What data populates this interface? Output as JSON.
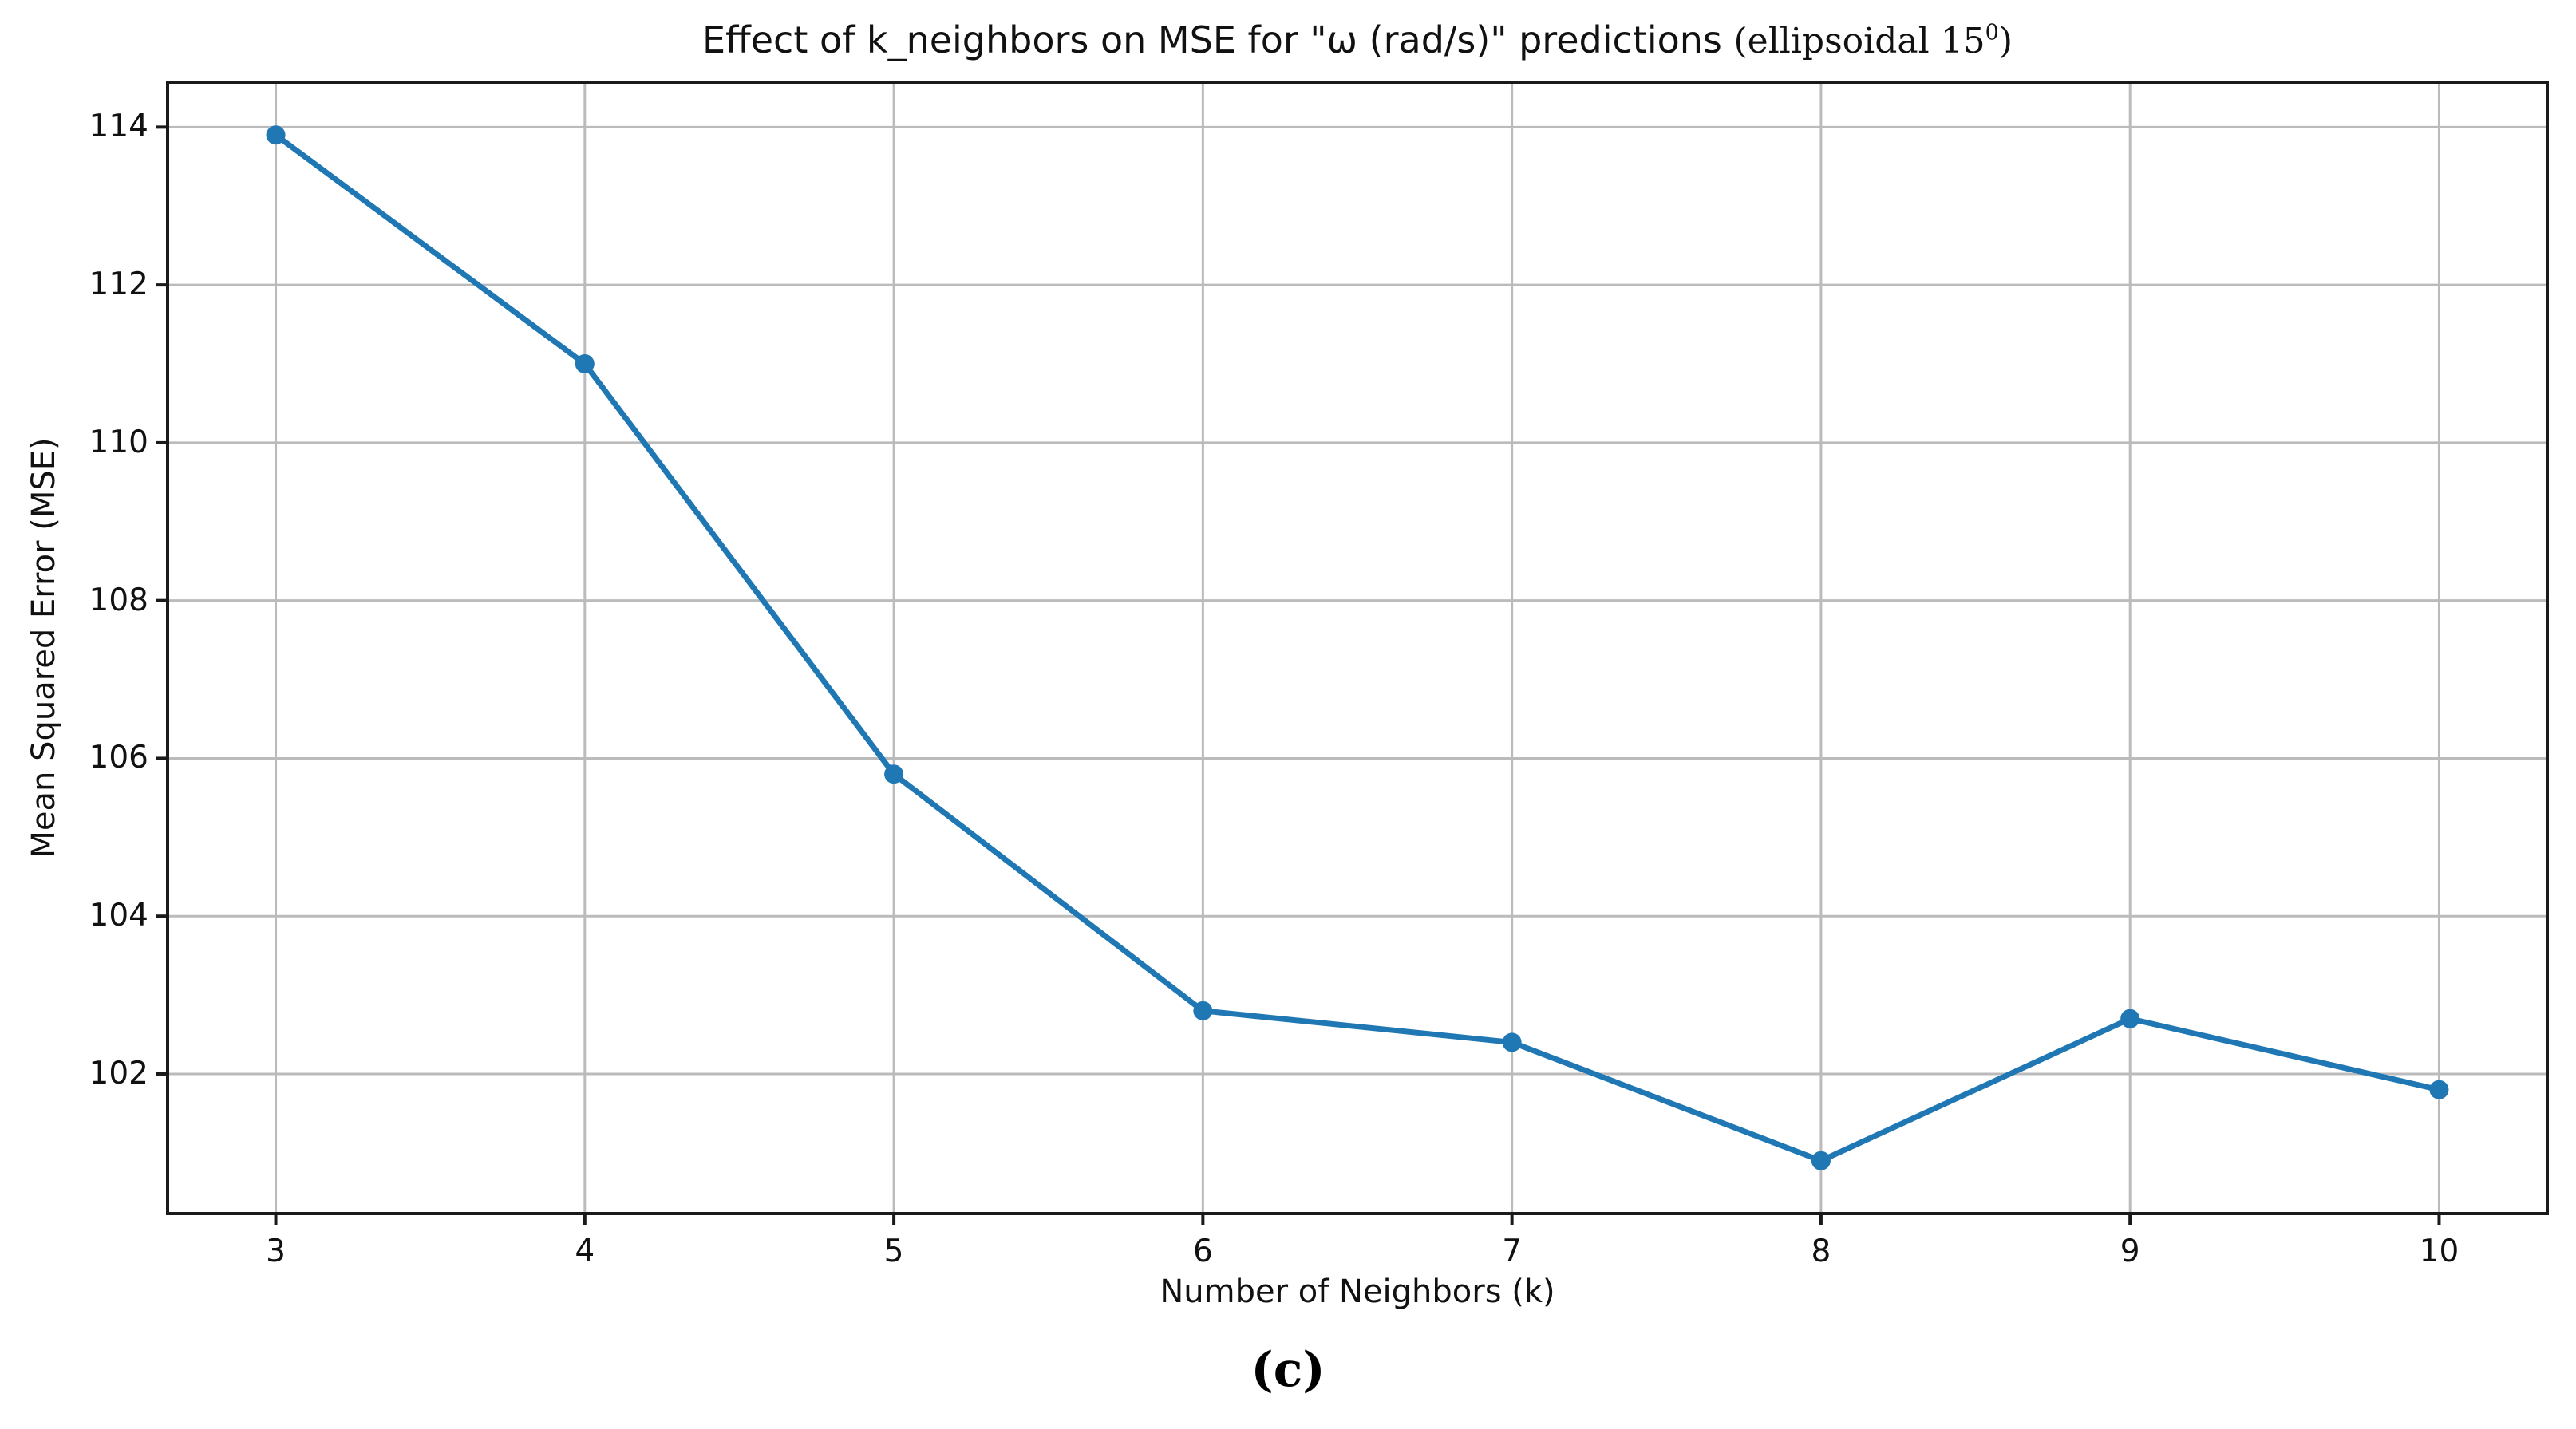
{
  "figure": {
    "caption": "(c)"
  },
  "chart_data": {
    "type": "line",
    "title": "Effect of k_neighbors on MSE for \"ω (rad/s)\" predictions (ellipsoidal 15⁰)",
    "title_parts": {
      "prefix": "Effect of k_neighbors on MSE for \"ω (rad/s)\" predictions ",
      "math_text": "(ellipsoidal 15",
      "superscript": "0",
      "suffix": ")"
    },
    "xlabel": "Number of Neighbors (k)",
    "ylabel": "Mean Squared Error (MSE)",
    "x": [
      3,
      4,
      5,
      6,
      7,
      8,
      9,
      10
    ],
    "y": [
      113.9,
      111.0,
      105.8,
      102.8,
      102.4,
      100.9,
      102.7,
      101.8
    ],
    "xticks": [
      3,
      4,
      5,
      6,
      7,
      8,
      9,
      10
    ],
    "yticks": [
      102,
      104,
      106,
      108,
      110,
      112,
      114
    ],
    "xlim": [
      2.65,
      10.35
    ],
    "ylim": [
      100.23,
      114.57
    ],
    "grid": true,
    "legend_position": "none",
    "line_color": "#1f77b4",
    "marker_style": "circle",
    "grid_color": "#bbbbbb",
    "axis_color": "#1a1a1a",
    "background": "#ffffff"
  }
}
